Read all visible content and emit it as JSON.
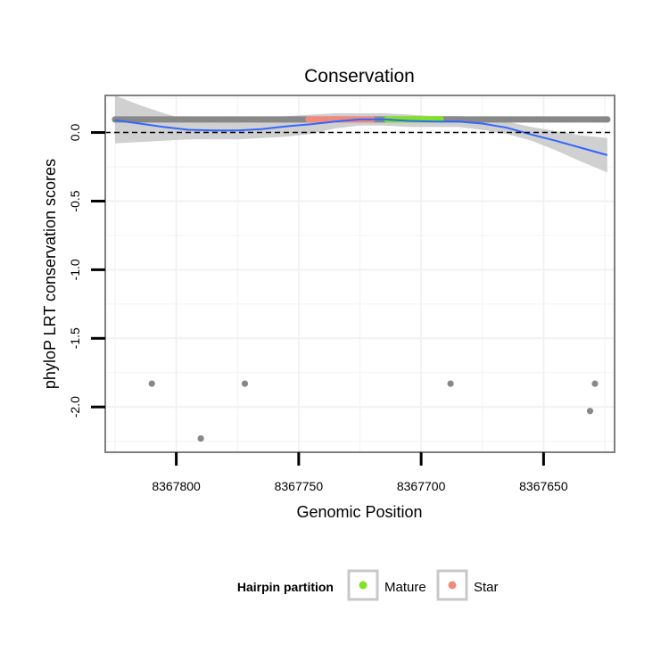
{
  "chart_data": {
    "type": "scatter",
    "title": "Conservation",
    "xlabel": "Genomic Position",
    "ylabel": "phyloP LRT conservation scores",
    "x_reversed": true,
    "xlim": [
      8367829,
      8367621
    ],
    "ylim": [
      -2.33,
      0.27
    ],
    "x_ticks": [
      8367800,
      8367750,
      8367700,
      8367650
    ],
    "x_tick_labels": [
      "8367800",
      "8367750",
      "8367700",
      "8367650"
    ],
    "y_ticks": [
      0.0,
      -0.5,
      -1.0,
      -1.5,
      -2.0
    ],
    "y_tick_labels": [
      "0.0",
      "-0.5",
      "-1.0",
      "-1.5",
      "-2.0"
    ],
    "reference_line": {
      "y": 0,
      "style": "dashed"
    },
    "grid": true,
    "colors": {
      "points": "#888888",
      "mature": "#7fe324",
      "star": "#f08a7c",
      "smooth": "#3366ff",
      "ribbon": "#c8c8c8",
      "panel_border": "#808080",
      "grid": "#f2f2f2"
    },
    "baseline_points": {
      "x_start": 8367825,
      "x_end": 8367624,
      "y": 0.095
    },
    "outliers": [
      {
        "x": 8367810,
        "y": -1.83
      },
      {
        "x": 8367790,
        "y": -2.23
      },
      {
        "x": 8367772,
        "y": -1.83
      },
      {
        "x": 8367688,
        "y": -1.83
      },
      {
        "x": 8367631,
        "y": -2.03
      },
      {
        "x": 8367629,
        "y": -1.83
      }
    ],
    "star_segment": {
      "x_start": 8367746,
      "x_end": 8367720,
      "y": 0.095
    },
    "mature_segment": {
      "x_start": 8367714,
      "x_end": 8367692,
      "y": 0.095
    },
    "smooth_line": {
      "x": [
        8367825,
        8367815,
        8367805,
        8367795,
        8367785,
        8367775,
        8367765,
        8367755,
        8367745,
        8367735,
        8367725,
        8367715,
        8367705,
        8367695,
        8367685,
        8367675,
        8367665,
        8367655,
        8367645,
        8367635,
        8367624
      ],
      "y": [
        0.09,
        0.065,
        0.04,
        0.02,
        0.015,
        0.015,
        0.025,
        0.045,
        0.06,
        0.08,
        0.095,
        0.095,
        0.085,
        0.08,
        0.08,
        0.065,
        0.035,
        -0.015,
        -0.06,
        -0.11,
        -0.165
      ],
      "lower": [
        -0.08,
        -0.07,
        -0.06,
        -0.05,
        -0.05,
        -0.05,
        -0.04,
        -0.03,
        -0.01,
        0.03,
        0.05,
        0.05,
        0.04,
        0.04,
        0.04,
        0.02,
        -0.01,
        -0.06,
        -0.13,
        -0.21,
        -0.29
      ],
      "upper": [
        0.27,
        0.2,
        0.14,
        0.09,
        0.08,
        0.08,
        0.09,
        0.12,
        0.13,
        0.14,
        0.14,
        0.14,
        0.13,
        0.12,
        0.12,
        0.11,
        0.08,
        0.04,
        0.01,
        -0.02,
        -0.04
      ]
    },
    "legend": {
      "title": "Hairpin partition",
      "position": "bottom",
      "items": [
        {
          "label": "Mature",
          "color": "#7fe324"
        },
        {
          "label": "Star",
          "color": "#f08a7c"
        }
      ]
    }
  }
}
